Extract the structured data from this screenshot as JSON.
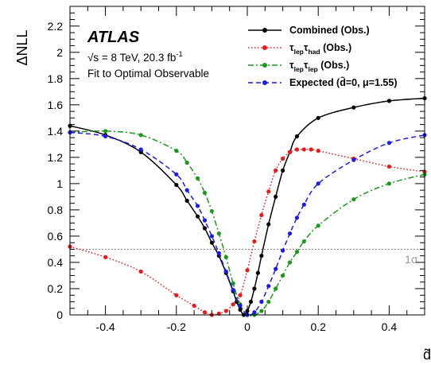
{
  "chart_data": {
    "type": "line",
    "title": "",
    "xlabel": "d̃",
    "ylabel": "ΔNLL",
    "xlim": [
      -0.5,
      0.5
    ],
    "ylim": [
      0,
      2.35
    ],
    "x_ticks": [
      "-0.4",
      "-0.2",
      "0",
      "0.2",
      "0.4"
    ],
    "x_tick_values": [
      -0.4,
      -0.2,
      0,
      0.2,
      0.4
    ],
    "y_ticks": [
      "0",
      "0.2",
      "0.4",
      "0.6",
      "0.8",
      "1",
      "1.2",
      "1.4",
      "1.6",
      "1.8",
      "2",
      "2.2"
    ],
    "y_tick_values": [
      0,
      0.2,
      0.4,
      0.6,
      0.8,
      1.0,
      1.2,
      1.4,
      1.6,
      1.8,
      2.0,
      2.2
    ],
    "annotations": {
      "experiment": "ATLAS",
      "energy_pre": "√s = 8 TeV, 20.3 fb",
      "energy_sup": "-1",
      "fit_text": "Fit to Optimal Observable",
      "sigma_label": "1σ"
    },
    "reference_line": {
      "y": 0.5,
      "style": "dotted",
      "color": "#888888"
    },
    "legend_position": "top-right",
    "series": [
      {
        "name": "Combined (Obs.)",
        "legend_main": "Combined (Obs.)",
        "color": "#000000",
        "dash": "solid",
        "x": [
          -0.5,
          -0.4,
          -0.3,
          -0.2,
          -0.17,
          -0.14,
          -0.12,
          -0.1,
          -0.08,
          -0.06,
          -0.04,
          -0.03,
          -0.02,
          -0.01,
          0.0,
          0.01,
          0.02,
          0.03,
          0.04,
          0.06,
          0.08,
          0.1,
          0.12,
          0.14,
          0.2,
          0.3,
          0.4,
          0.5
        ],
        "values": [
          1.44,
          1.37,
          1.24,
          0.99,
          0.87,
          0.75,
          0.66,
          0.55,
          0.45,
          0.32,
          0.18,
          0.1,
          0.04,
          0.0,
          0.03,
          0.1,
          0.2,
          0.32,
          0.45,
          0.69,
          0.9,
          1.1,
          1.24,
          1.36,
          1.5,
          1.58,
          1.63,
          1.65
        ]
      },
      {
        "name": "τlepτhad (Obs.)",
        "legend_main": "τ",
        "legend_sub1": "lep",
        "legend_mid": "τ",
        "legend_sub2": "had",
        "legend_tail": " (Obs.)",
        "color": "#e8191b",
        "dash": "dotted",
        "x": [
          -0.5,
          -0.4,
          -0.3,
          -0.2,
          -0.15,
          -0.12,
          -0.1,
          -0.08,
          -0.06,
          -0.04,
          -0.02,
          0.0,
          0.02,
          0.04,
          0.06,
          0.08,
          0.1,
          0.12,
          0.14,
          0.16,
          0.18,
          0.2,
          0.3,
          0.4,
          0.5
        ],
        "values": [
          0.52,
          0.44,
          0.33,
          0.15,
          0.07,
          0.02,
          0.0,
          0.01,
          0.03,
          0.08,
          0.15,
          0.34,
          0.56,
          0.76,
          0.94,
          1.1,
          1.19,
          1.24,
          1.26,
          1.26,
          1.26,
          1.25,
          1.19,
          1.13,
          1.09
        ]
      },
      {
        "name": "τlepτlep (Obs.)",
        "legend_main": "τ",
        "legend_sub1": "lep",
        "legend_mid": "τ",
        "legend_sub2": "lep",
        "legend_tail": " (Obs.)",
        "color": "#1a9a1a",
        "dash": "dashdot",
        "x": [
          -0.5,
          -0.4,
          -0.3,
          -0.2,
          -0.17,
          -0.14,
          -0.12,
          -0.1,
          -0.08,
          -0.06,
          -0.04,
          -0.02,
          0.0,
          0.02,
          0.04,
          0.06,
          0.08,
          0.1,
          0.12,
          0.14,
          0.16,
          0.2,
          0.3,
          0.4,
          0.5
        ],
        "values": [
          1.39,
          1.4,
          1.37,
          1.25,
          1.16,
          1.04,
          0.93,
          0.79,
          0.62,
          0.44,
          0.24,
          0.08,
          0.0,
          0.0,
          0.03,
          0.1,
          0.2,
          0.3,
          0.4,
          0.48,
          0.56,
          0.68,
          0.88,
          1.0,
          1.07
        ]
      },
      {
        "name": "Expected (d̃=0, μ=1.55)",
        "legend_main": "Expected (d̃=0, μ=1.55)",
        "color": "#1a1aee",
        "dash": "dashed",
        "x": [
          -0.5,
          -0.4,
          -0.3,
          -0.2,
          -0.17,
          -0.14,
          -0.12,
          -0.1,
          -0.08,
          -0.06,
          -0.04,
          -0.02,
          0.0,
          0.02,
          0.04,
          0.06,
          0.08,
          0.1,
          0.12,
          0.14,
          0.16,
          0.2,
          0.3,
          0.4,
          0.5
        ],
        "values": [
          1.39,
          1.36,
          1.26,
          1.07,
          0.95,
          0.83,
          0.72,
          0.6,
          0.47,
          0.33,
          0.19,
          0.07,
          0.0,
          0.02,
          0.1,
          0.22,
          0.35,
          0.49,
          0.62,
          0.74,
          0.84,
          1.0,
          1.18,
          1.31,
          1.37
        ]
      }
    ]
  }
}
